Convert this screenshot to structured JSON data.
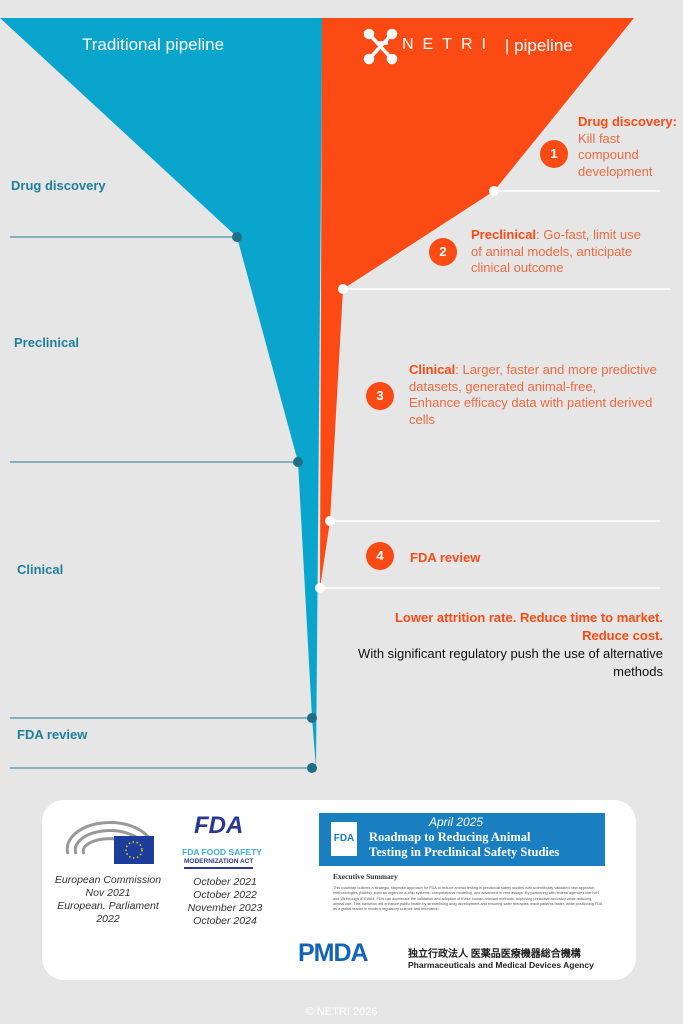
{
  "colors": {
    "traditional": "#0aa5cc",
    "netri": "#fc4a14",
    "background": "#e6e6e6"
  },
  "traditional": {
    "title": "Traditional pipeline",
    "stages": [
      "Drug discovery",
      "Preclinical",
      "Clinical",
      "FDA review"
    ]
  },
  "netri": {
    "brand": "NETRI",
    "title_suffix": "| pipeline",
    "steps": [
      {
        "num": "1",
        "heading": "Drug discovery:",
        "text": "Kill fast compound development"
      },
      {
        "num": "2",
        "heading": "Preclinical",
        "text": ": Go-fast, limit use of animal models, anticipate clinical outcome"
      },
      {
        "num": "3",
        "heading": "Clinical",
        "text": ": Larger, faster and more predictive datasets, generated animal-free,",
        "text2": "Enhance efficacy data with patient derived cells"
      },
      {
        "num": "4",
        "heading": "FDA review",
        "text": ""
      }
    ],
    "summary1": "Lower attrition rate. Reduce time to market.",
    "summary2": "Reduce cost.",
    "summary3": "With significant regulatory push the use of alternative methods"
  },
  "regulatory": {
    "eu": [
      "European Commission",
      "Nov 2021",
      "European. Parliament",
      "2022"
    ],
    "fda_logo": "FDA",
    "fsma_line1": "FDA FOOD SAFETY",
    "fsma_line2": "MODERNIZATION ACT",
    "fda_dates": [
      "October 2021",
      "October 2022",
      "November 2023",
      "October 2024"
    ],
    "roadmap": {
      "date": "April 2025",
      "title1": "Roadmap to Reducing Animal",
      "title2": "Testing in Preclinical Safety Studies",
      "section": "Executive Summary",
      "body": "This roadmap outlines a strategic, stepwise approach for FDA to reduce animal testing in preclinical safety studies with scientifically validated new approach methodologies (NAMs), such as organ-on-a-chip systems, computational modeling, and advanced in vitro assays. By partnering with federal agencies like NIH and VA through ICCVAM, FDA can accelerate the validation and adoption of these human-relevant methods, improving predictive accuracy while reducing animal use. This transition will enhance public health by streamlining drug development and ensuring safer therapies reach patients faster, while positioning FDA as a global leader in modern regulatory science and innovation."
    },
    "pmda": {
      "logo": "PMDA",
      "jp": "独立行政法人 医薬品医療機器総合機構",
      "en": "Pharmaceuticals and Medical Devices Agency"
    }
  },
  "footer": "© NETRI 2026"
}
